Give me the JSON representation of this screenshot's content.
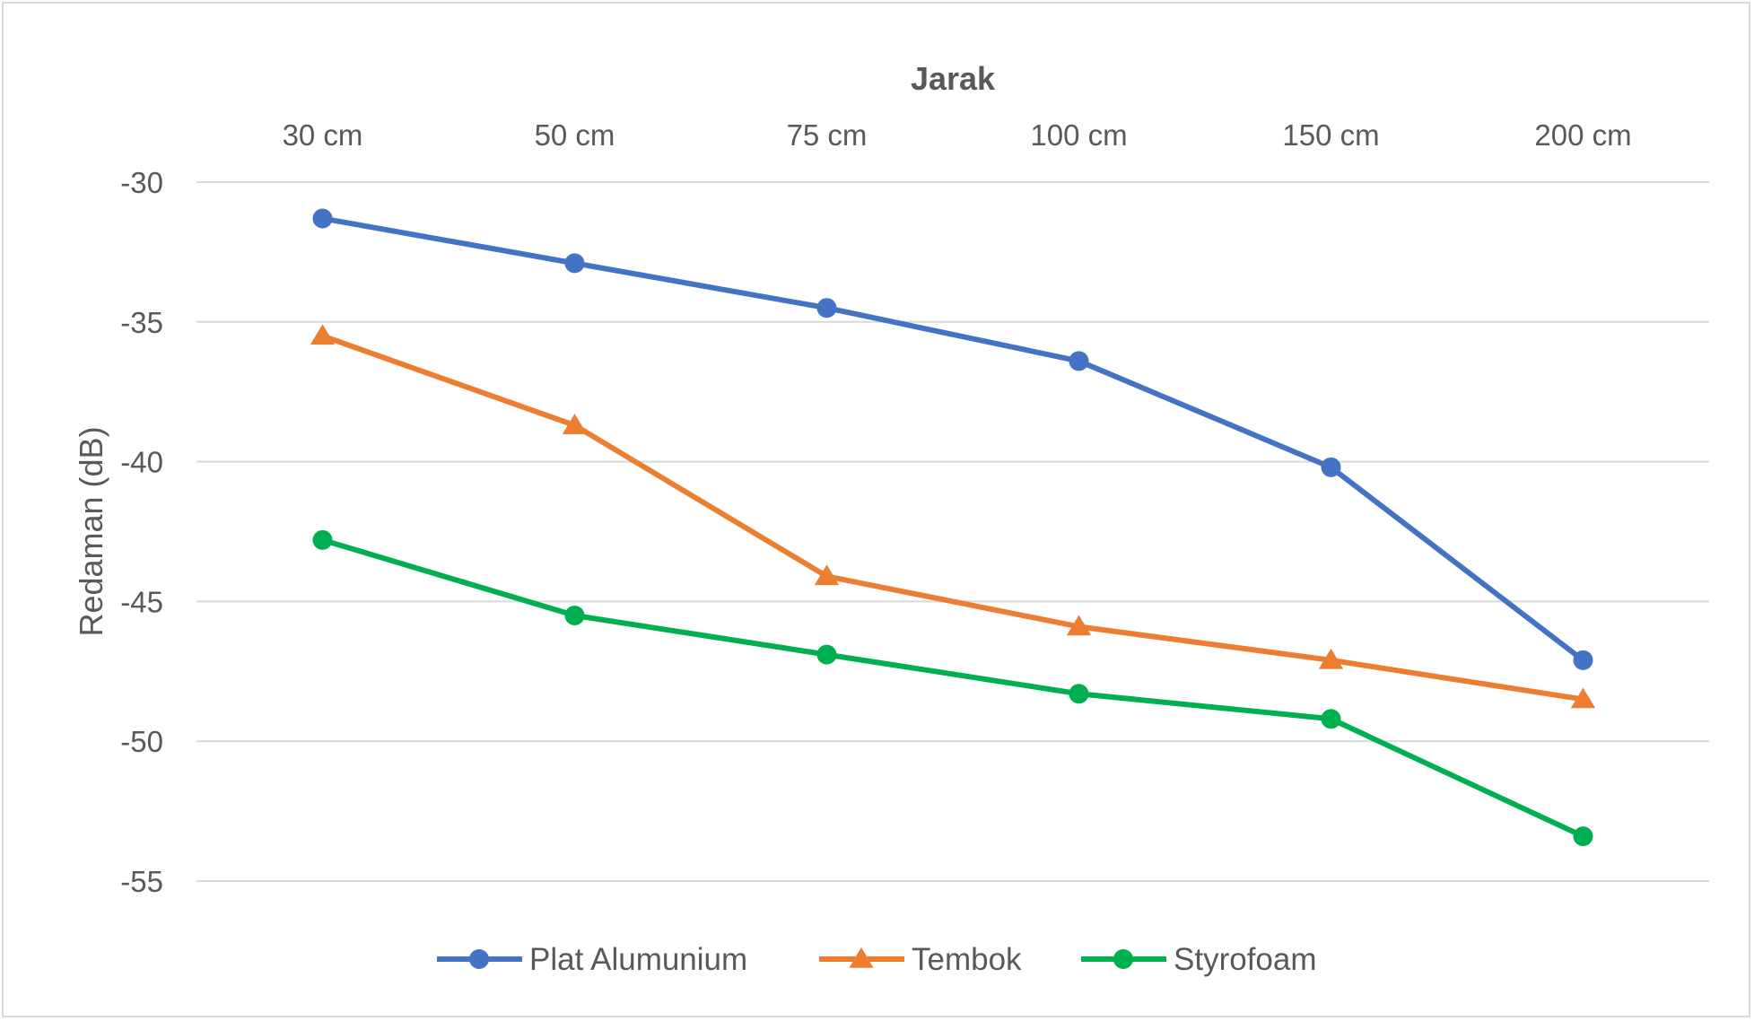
{
  "chart_data": {
    "type": "line",
    "xlabel": "Jarak",
    "ylabel": "Redaman (dB)",
    "categories": [
      "30 cm",
      "50 cm",
      "75 cm",
      "100 cm",
      "150 cm",
      "200 cm"
    ],
    "ylim": [
      -55,
      -30
    ],
    "yticks": [
      -30,
      -35,
      -40,
      -45,
      -50,
      -55
    ],
    "xaxis_position": "top",
    "grid": true,
    "legend_position": "bottom",
    "series": [
      {
        "name": "Plat Alumunium",
        "color": "#4472C4",
        "marker": "circle",
        "values": [
          -31.3,
          -32.9,
          -34.5,
          -36.4,
          -40.2,
          -47.1
        ]
      },
      {
        "name": "Tembok",
        "color": "#ED7D31",
        "marker": "triangle",
        "values": [
          -35.5,
          -38.7,
          -44.1,
          -45.9,
          -47.1,
          -48.5
        ]
      },
      {
        "name": "Styrofoam",
        "color": "#00B050",
        "marker": "circle",
        "values": [
          -42.8,
          -45.5,
          -46.9,
          -48.3,
          -49.2,
          -53.4
        ]
      }
    ]
  }
}
